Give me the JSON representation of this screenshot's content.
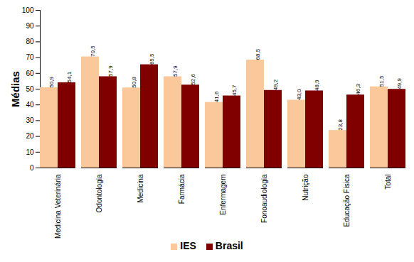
{
  "chart_data": {
    "type": "bar",
    "y_label": "Médias",
    "categories": [
      "Medicina Veterinária",
      "Odontologia",
      "Medicina",
      "Farmácia",
      "Enfermagem",
      "Fonoaudiologia",
      "Nutrição",
      "Educação Física",
      "Total"
    ],
    "series": [
      {
        "name": "IES",
        "color": "#FAC89A",
        "values": [
          50.9,
          70.5,
          50.8,
          57.9,
          41.6,
          68.5,
          43.0,
          23.8,
          51.5
        ],
        "value_labels": [
          "50,9",
          "70,5",
          "50,8",
          "57,9",
          "41,6",
          "68,5",
          "43,0",
          "23,8",
          "51,5"
        ]
      },
      {
        "name": "Brasil",
        "color": "#800000",
        "values": [
          54.1,
          57.9,
          65.5,
          52.6,
          45.7,
          49.2,
          48.9,
          46.3,
          49.9
        ],
        "value_labels": [
          "54,1",
          "57,9",
          "65,5",
          "52,6",
          "45,7",
          "49,2",
          "48,9",
          "46,3",
          "49,9"
        ]
      }
    ],
    "ylim": [
      0,
      100
    ],
    "yticks": [
      0,
      10,
      20,
      30,
      40,
      50,
      60,
      70,
      80,
      90,
      100
    ],
    "grid": false,
    "data_labels": true,
    "legend": "bottom"
  }
}
